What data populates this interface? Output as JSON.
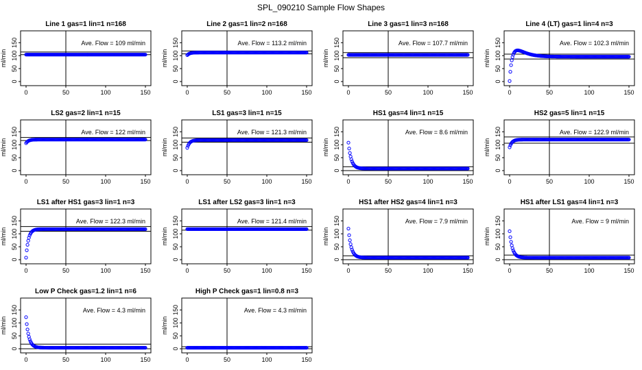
{
  "figure": {
    "title": "SPL_090210  Sample Flow Shapes",
    "ylabel": "ml/min",
    "x_ticks": [
      0,
      50,
      100,
      150
    ],
    "y_ticks": [
      0,
      50,
      100,
      150
    ],
    "xlim": [
      0,
      150
    ],
    "ylim": [
      0,
      180
    ],
    "point_color": "#0000ff",
    "vline_x": 50
  },
  "chart_data": [
    {
      "type": "scatter",
      "title": "Line 1 gas=1 lin=1 n=168",
      "annotation": "Ave. Flow =  109  ml/min",
      "mean": 109,
      "band": [
        104,
        114
      ],
      "shape": {
        "kind": "flat",
        "start": 104,
        "end": 104
      }
    },
    {
      "type": "scatter",
      "title": "Line 2 gas=1 lin=2 n=168",
      "annotation": "Ave. Flow =  113.2  ml/min",
      "mean": 113.2,
      "band": [
        107,
        118
      ],
      "shape": {
        "kind": "settle",
        "start": 102,
        "end": 112
      }
    },
    {
      "type": "scatter",
      "title": "Line 3 gas=1 lin=3 n=168",
      "annotation": "Ave. Flow =  107.7  ml/min",
      "mean": 107.7,
      "band": [
        92,
        112
      ],
      "shape": {
        "kind": "flat",
        "start": 103,
        "end": 103
      }
    },
    {
      "type": "scatter",
      "title": "Line 4 (LT) gas=1 lin=4 n=3",
      "annotation": "Ave. Flow =  102.3  ml/min",
      "mean": 102.3,
      "band": [
        87,
        106
      ],
      "shape": {
        "kind": "overshoot",
        "start": 2,
        "end": 96,
        "peak": 123
      }
    },
    {
      "type": "scatter",
      "title": "LS2 gas=2 lin=1 n=15",
      "annotation": "Ave. Flow =  122  ml/min",
      "mean": 122,
      "band": [
        116,
        128
      ],
      "shape": {
        "kind": "settle",
        "start": 106,
        "end": 120
      }
    },
    {
      "type": "scatter",
      "title": "LS1 gas=3 lin=1 n=15",
      "annotation": "Ave. Flow =  121.3  ml/min",
      "mean": 121.3,
      "band": [
        110,
        126
      ],
      "shape": {
        "kind": "settle",
        "start": 88,
        "end": 118
      }
    },
    {
      "type": "scatter",
      "title": "HS1 gas=4 lin=1 n=15",
      "annotation": "Ave. Flow =  8.6  ml/min",
      "mean": 8.6,
      "band": [
        0,
        15
      ],
      "shape": {
        "kind": "decay",
        "start": 108,
        "end": 8
      }
    },
    {
      "type": "scatter",
      "title": "HS2 gas=5 lin=1 n=15",
      "annotation": "Ave. Flow =  122.9  ml/min",
      "mean": 122.9,
      "band": [
        106,
        130
      ],
      "shape": {
        "kind": "settle",
        "start": 90,
        "end": 120
      }
    },
    {
      "type": "scatter",
      "title": "LS1 after HS1 gas=3 lin=1 n=3",
      "annotation": "Ave. Flow =  122.3  ml/min",
      "mean": 122.3,
      "band": [
        110,
        128
      ],
      "shape": {
        "kind": "rise",
        "start": 8,
        "end": 118
      }
    },
    {
      "type": "scatter",
      "title": "LS1 after LS2 gas=3 lin=1 n=3",
      "annotation": "Ave. Flow =  121.4  ml/min",
      "mean": 121.4,
      "band": [
        114,
        128
      ],
      "shape": {
        "kind": "flat",
        "start": 118,
        "end": 118
      }
    },
    {
      "type": "scatter",
      "title": "HS1 after HS2 gas=4 lin=1 n=3",
      "annotation": "Ave. Flow =  7.9  ml/min",
      "mean": 7.9,
      "band": [
        0,
        15
      ],
      "shape": {
        "kind": "decay",
        "start": 120,
        "end": 8
      }
    },
    {
      "type": "scatter",
      "title": "HS1 after LS1 gas=4 lin=1 n=3",
      "annotation": "Ave. Flow =  9  ml/min",
      "mean": 9,
      "band": [
        0,
        18
      ],
      "shape": {
        "kind": "decay",
        "start": 110,
        "end": 8
      }
    },
    {
      "type": "scatter",
      "title": "Low P Check gas=1.2 lin=1 n=6",
      "annotation": "Ave. Flow =  4.3  ml/min",
      "mean": 4.3,
      "band": [
        0,
        18
      ],
      "shape": {
        "kind": "decay",
        "start": 122,
        "end": 4
      }
    },
    {
      "type": "scatter",
      "title": "High P Check gas=1 lin=0.8 n=3",
      "annotation": "Ave. Flow =  4.3  ml/min",
      "mean": 4.3,
      "band": [
        0,
        8
      ],
      "shape": {
        "kind": "flat",
        "start": 4,
        "end": 4
      }
    }
  ]
}
